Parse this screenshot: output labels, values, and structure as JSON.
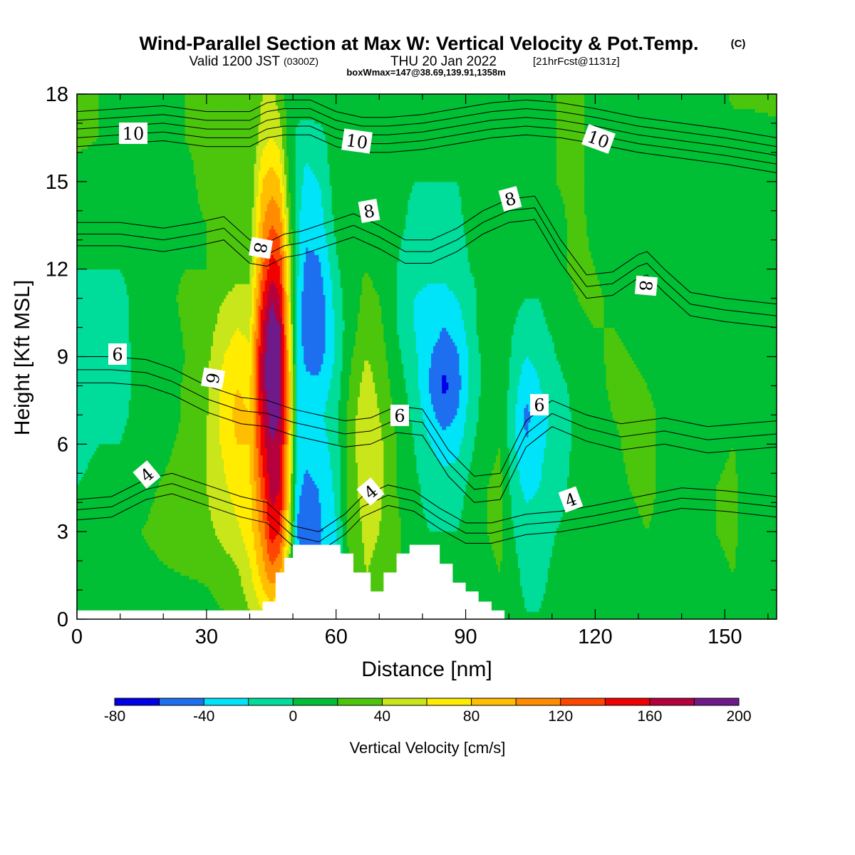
{
  "title": {
    "main": "Wind-Parallel Section at Max W: Vertical Velocity & Pot.Temp.",
    "copyright": "(C)",
    "valid_prefix": "Valid 1200 JST",
    "valid_utc": "(0300Z)",
    "valid_date": "THU 20 Jan 2022",
    "forecast": "[21hrFcst@1131z]",
    "box_info": "boxWmax=147@38.69,139.91,1358m"
  },
  "chart_data": {
    "type": "heatmap",
    "xlabel": "Distance [nm]",
    "ylabel": "Height [Kft MSL]",
    "xlim": [
      0,
      162
    ],
    "ylim": [
      0,
      18
    ],
    "x_ticks": [
      "0",
      "30",
      "60",
      "90",
      "120",
      "150"
    ],
    "x_tick_values": [
      0,
      30,
      60,
      90,
      120,
      150
    ],
    "y_ticks": [
      "0",
      "3",
      "6",
      "9",
      "12",
      "15",
      "18"
    ],
    "y_tick_values": [
      0,
      3,
      6,
      9,
      12,
      15,
      18
    ],
    "colorbar": {
      "label": "Vertical Velocity [cm/s]",
      "tick_labels": [
        "-80",
        "-40",
        "0",
        "40",
        "80",
        "120",
        "160",
        "200"
      ],
      "tick_values": [
        -80,
        -40,
        0,
        40,
        80,
        120,
        160,
        200
      ],
      "levels": [
        -80,
        -60,
        -40,
        -20,
        0,
        20,
        40,
        60,
        80,
        100,
        120,
        140,
        160,
        180,
        200
      ],
      "colors": [
        "#0000e6",
        "#1e6ff0",
        "#00e4fa",
        "#00dc9a",
        "#00bf34",
        "#4cc60c",
        "#c8e61a",
        "#ffec00",
        "#ffbe00",
        "#ff8c00",
        "#ff4600",
        "#f00000",
        "#b4003c",
        "#6e1a8a"
      ]
    },
    "series_vertical_velocity": [
      {
        "x": 0,
        "w": [
          5,
          10,
          5,
          0,
          -5,
          -5,
          -8,
          -5,
          -3,
          -3,
          0,
          5,
          10,
          25,
          25
        ]
      },
      {
        "x": 5,
        "w": [
          12,
          15,
          10,
          5,
          0,
          -5,
          -8,
          -5,
          -3,
          -3,
          0,
          5,
          10,
          20,
          20
        ]
      },
      {
        "x": 10,
        "w": [
          5,
          10,
          8,
          5,
          0,
          -3,
          -5,
          -5,
          -3,
          -3,
          0,
          5,
          10,
          20,
          15
        ]
      },
      {
        "x": 15,
        "w": [
          5,
          15,
          20,
          15,
          8,
          5,
          5,
          5,
          5,
          5,
          5,
          10,
          15,
          20,
          20
        ]
      },
      {
        "x": 20,
        "w": [
          10,
          18,
          25,
          22,
          15,
          10,
          10,
          8,
          10,
          12,
          12,
          15,
          20,
          15,
          15
        ]
      },
      {
        "x": 25,
        "w": [
          10,
          20,
          30,
          30,
          25,
          22,
          22,
          20,
          22,
          25,
          20,
          15,
          15,
          20,
          20
        ]
      },
      {
        "x": 30,
        "w": [
          15,
          22,
          35,
          40,
          40,
          38,
          38,
          35,
          30,
          25,
          20,
          20,
          25,
          25,
          25
        ]
      },
      {
        "x": 34,
        "w": [
          20,
          30,
          45,
          55,
          65,
          70,
          68,
          60,
          50,
          40,
          30,
          25,
          25,
          25,
          20
        ]
      },
      {
        "x": 37,
        "w": [
          25,
          35,
          55,
          70,
          80,
          85,
          80,
          70,
          60,
          45,
          35,
          25,
          25,
          20,
          20
        ]
      },
      {
        "x": 40,
        "w": [
          40,
          55,
          70,
          75,
          80,
          80,
          75,
          65,
          55,
          45,
          35,
          25,
          20,
          20,
          20
        ]
      },
      {
        "x": 43,
        "w": [
          60,
          90,
          110,
          130,
          150,
          160,
          170,
          170,
          160,
          140,
          120,
          100,
          80,
          50,
          40
        ]
      },
      {
        "x": 45,
        "w": [
          70,
          110,
          150,
          170,
          180,
          190,
          200,
          200,
          195,
          180,
          150,
          120,
          90,
          60,
          45
        ]
      },
      {
        "x": 47,
        "w": [
          60,
          100,
          140,
          160,
          170,
          180,
          190,
          190,
          180,
          160,
          140,
          110,
          80,
          50,
          30
        ]
      },
      {
        "x": 49,
        "w": [
          20,
          40,
          60,
          80,
          90,
          100,
          100,
          90,
          80,
          70,
          60,
          40,
          20,
          10,
          10
        ]
      },
      {
        "x": 51,
        "w": [
          -10,
          -25,
          -40,
          -35,
          -25,
          -20,
          -20,
          -25,
          -25,
          -20,
          -15,
          -15,
          -10,
          -5,
          10
        ]
      },
      {
        "x": 53,
        "w": [
          -20,
          -40,
          -60,
          -45,
          -35,
          -30,
          -35,
          -45,
          -55,
          -55,
          -45,
          -35,
          -25,
          -15,
          20
        ]
      },
      {
        "x": 56,
        "w": [
          -15,
          -35,
          -45,
          -40,
          -30,
          -25,
          -35,
          -50,
          -60,
          -55,
          -45,
          -30,
          -20,
          -10,
          20
        ]
      },
      {
        "x": 60,
        "w": [
          -5,
          -15,
          -20,
          -15,
          -10,
          -5,
          -10,
          -15,
          -15,
          -10,
          -5,
          5,
          10,
          15,
          20
        ]
      },
      {
        "x": 63,
        "w": [
          10,
          20,
          25,
          30,
          30,
          25,
          20,
          15,
          10,
          10,
          15,
          15,
          15,
          15,
          15
        ]
      },
      {
        "x": 67,
        "w": [
          30,
          40,
          45,
          50,
          55,
          60,
          50,
          40,
          30,
          25,
          20,
          15,
          10,
          5,
          10
        ]
      },
      {
        "x": 70,
        "w": [
          25,
          35,
          40,
          45,
          45,
          40,
          35,
          30,
          25,
          20,
          15,
          10,
          5,
          5,
          10
        ]
      },
      {
        "x": 74,
        "w": [
          20,
          25,
          25,
          20,
          20,
          15,
          10,
          5,
          0,
          0,
          0,
          5,
          5,
          5,
          10
        ]
      },
      {
        "x": 78,
        "w": [
          10,
          10,
          5,
          5,
          0,
          -5,
          -10,
          -15,
          -20,
          -20,
          -15,
          -5,
          0,
          5,
          10
        ]
      },
      {
        "x": 82,
        "w": [
          5,
          5,
          0,
          -10,
          -20,
          -35,
          -45,
          -40,
          -30,
          -25,
          -15,
          -10,
          0,
          5,
          10
        ]
      },
      {
        "x": 85,
        "w": [
          5,
          5,
          0,
          -10,
          -30,
          -50,
          -65,
          -55,
          -40,
          -25,
          -15,
          -5,
          0,
          5,
          10
        ]
      },
      {
        "x": 88,
        "w": [
          5,
          5,
          0,
          -10,
          -25,
          -40,
          -50,
          -45,
          -30,
          -20,
          -10,
          -5,
          0,
          5,
          10
        ]
      },
      {
        "x": 91,
        "w": [
          5,
          10,
          10,
          5,
          -5,
          -10,
          -15,
          -15,
          -10,
          -10,
          0,
          5,
          5,
          5,
          10
        ]
      },
      {
        "x": 95,
        "w": [
          10,
          15,
          20,
          20,
          15,
          10,
          10,
          10,
          15,
          15,
          10,
          10,
          10,
          10,
          10
        ]
      },
      {
        "x": 98,
        "w": [
          15,
          20,
          25,
          25,
          20,
          15,
          15,
          15,
          15,
          15,
          10,
          10,
          5,
          5,
          10
        ]
      },
      {
        "x": 101,
        "w": [
          5,
          5,
          0,
          -10,
          -15,
          -15,
          -10,
          -5,
          0,
          5,
          5,
          5,
          5,
          5,
          10
        ]
      },
      {
        "x": 104,
        "w": [
          0,
          -5,
          -10,
          -25,
          -40,
          -45,
          -35,
          -20,
          -10,
          0,
          0,
          5,
          5,
          5,
          10
        ]
      },
      {
        "x": 107,
        "w": [
          0,
          -5,
          -10,
          -20,
          -25,
          -30,
          -20,
          -15,
          -5,
          0,
          0,
          5,
          5,
          5,
          10
        ]
      },
      {
        "x": 111,
        "w": [
          5,
          5,
          0,
          -5,
          -10,
          -10,
          -5,
          0,
          5,
          10,
          15,
          15,
          20,
          20,
          20
        ]
      },
      {
        "x": 116,
        "w": [
          5,
          5,
          5,
          5,
          5,
          5,
          5,
          10,
          15,
          20,
          25,
          25,
          25,
          25,
          25
        ]
      },
      {
        "x": 120,
        "w": [
          5,
          5,
          5,
          5,
          5,
          5,
          10,
          15,
          20,
          25,
          20,
          15,
          10,
          10,
          10
        ]
      },
      {
        "x": 124,
        "w": [
          5,
          5,
          5,
          10,
          15,
          20,
          25,
          25,
          20,
          15,
          10,
          5,
          5,
          5,
          5
        ]
      },
      {
        "x": 128,
        "w": [
          5,
          10,
          15,
          20,
          25,
          25,
          25,
          20,
          15,
          10,
          5,
          5,
          5,
          5,
          5
        ]
      },
      {
        "x": 132,
        "w": [
          10,
          15,
          20,
          25,
          25,
          25,
          20,
          15,
          10,
          5,
          5,
          5,
          5,
          5,
          5
        ]
      },
      {
        "x": 136,
        "w": [
          10,
          15,
          15,
          15,
          15,
          15,
          15,
          15,
          10,
          5,
          5,
          5,
          5,
          10,
          15
        ]
      },
      {
        "x": 140,
        "w": [
          10,
          15,
          10,
          5,
          5,
          5,
          10,
          10,
          10,
          5,
          5,
          5,
          5,
          5,
          10
        ]
      },
      {
        "x": 144,
        "w": [
          5,
          10,
          10,
          5,
          5,
          5,
          5,
          5,
          5,
          5,
          5,
          5,
          5,
          5,
          5
        ]
      },
      {
        "x": 148,
        "w": [
          10,
          15,
          20,
          20,
          15,
          10,
          5,
          5,
          5,
          5,
          5,
          5,
          5,
          5,
          10
        ]
      },
      {
        "x": 152,
        "w": [
          15,
          20,
          25,
          25,
          20,
          15,
          5,
          5,
          5,
          5,
          5,
          5,
          5,
          10,
          25
        ]
      },
      {
        "x": 156,
        "w": [
          5,
          5,
          5,
          5,
          5,
          5,
          5,
          5,
          5,
          5,
          5,
          5,
          5,
          10,
          25
        ]
      },
      {
        "x": 162,
        "w": [
          5,
          5,
          5,
          5,
          5,
          5,
          5,
          5,
          5,
          5,
          5,
          5,
          5,
          10,
          30
        ]
      }
    ],
    "w_heights_kft": [
      0.3,
      1.5,
      3,
      4.5,
      6,
      7,
      8,
      9,
      10,
      11,
      12,
      13.5,
      15,
      16.5,
      18
    ],
    "terrain": {
      "x": [
        0,
        43,
        43,
        46,
        46,
        48,
        48,
        50,
        50,
        61,
        61,
        64,
        64,
        68,
        68,
        71,
        71,
        74,
        74,
        77,
        77,
        84,
        84,
        87,
        87,
        90,
        90,
        93,
        93,
        96,
        96,
        99,
        99,
        162
      ],
      "height_kft": [
        0.3,
        0.3,
        0.6,
        0.6,
        1.6,
        1.6,
        2.1,
        2.1,
        2.55,
        2.55,
        2.25,
        2.25,
        1.6,
        1.6,
        0.95,
        0.95,
        1.6,
        1.6,
        2.25,
        2.25,
        2.55,
        2.55,
        1.9,
        1.9,
        1.25,
        1.25,
        0.95,
        0.95,
        0.6,
        0.6,
        0.3,
        0.3,
        0,
        0
      ]
    },
    "potential_temperature_contours": [
      {
        "label": "4",
        "x": [
          0,
          8,
          16,
          22,
          30,
          38,
          44,
          50,
          56,
          62,
          66,
          72,
          78,
          84,
          90,
          96,
          104,
          112,
          120,
          130,
          140,
          150,
          162
        ],
        "height_kft": [
          4.1,
          4.2,
          4.8,
          5.0,
          4.6,
          4.2,
          4.0,
          3.2,
          3.0,
          3.6,
          4.2,
          4.6,
          4.4,
          3.8,
          3.3,
          3.3,
          3.6,
          3.7,
          3.9,
          4.2,
          4.5,
          4.4,
          4.2
        ]
      },
      {
        "label": "6",
        "x": [
          0,
          8,
          16,
          22,
          30,
          38,
          44,
          50,
          56,
          62,
          68,
          74,
          80,
          86,
          92,
          98,
          104,
          110,
          118,
          126,
          136,
          146,
          162
        ],
        "height_kft": [
          9.0,
          9.0,
          8.9,
          8.6,
          8.0,
          7.6,
          7.5,
          7.2,
          7.0,
          6.8,
          6.9,
          7.3,
          7.2,
          5.8,
          4.9,
          5.0,
          6.8,
          7.5,
          7.0,
          6.7,
          6.9,
          6.6,
          6.8
        ]
      },
      {
        "label": "8",
        "x": [
          0,
          10,
          20,
          28,
          34,
          40,
          44,
          48,
          52,
          58,
          64,
          70,
          76,
          82,
          88,
          94,
          100,
          106,
          112,
          118,
          124,
          130,
          132,
          136,
          142,
          150,
          162
        ],
        "height_kft": [
          13.6,
          13.6,
          13.4,
          13.6,
          13.8,
          13.0,
          12.9,
          13.2,
          13.3,
          13.6,
          13.9,
          13.5,
          13.0,
          13.0,
          13.4,
          14.0,
          14.4,
          14.5,
          13.0,
          11.8,
          11.9,
          12.5,
          12.6,
          12.0,
          11.2,
          11.0,
          10.8
        ]
      },
      {
        "label": "10",
        "x": [
          0,
          10,
          20,
          30,
          40,
          44,
          48,
          54,
          60,
          66,
          72,
          80,
          88,
          96,
          104,
          112,
          120,
          130,
          140,
          150,
          162
        ],
        "height_kft": [
          16.2,
          16.3,
          16.4,
          16.2,
          16.2,
          16.5,
          16.6,
          16.6,
          16.2,
          16.0,
          16.0,
          16.1,
          16.3,
          16.5,
          16.6,
          16.5,
          16.3,
          16.0,
          15.8,
          15.6,
          15.3
        ]
      }
    ],
    "contour_labels": [
      "10",
      "10",
      "10",
      "8",
      "8",
      "8",
      "8",
      "6",
      "6",
      "6",
      "6",
      "4",
      "4",
      "4"
    ]
  }
}
